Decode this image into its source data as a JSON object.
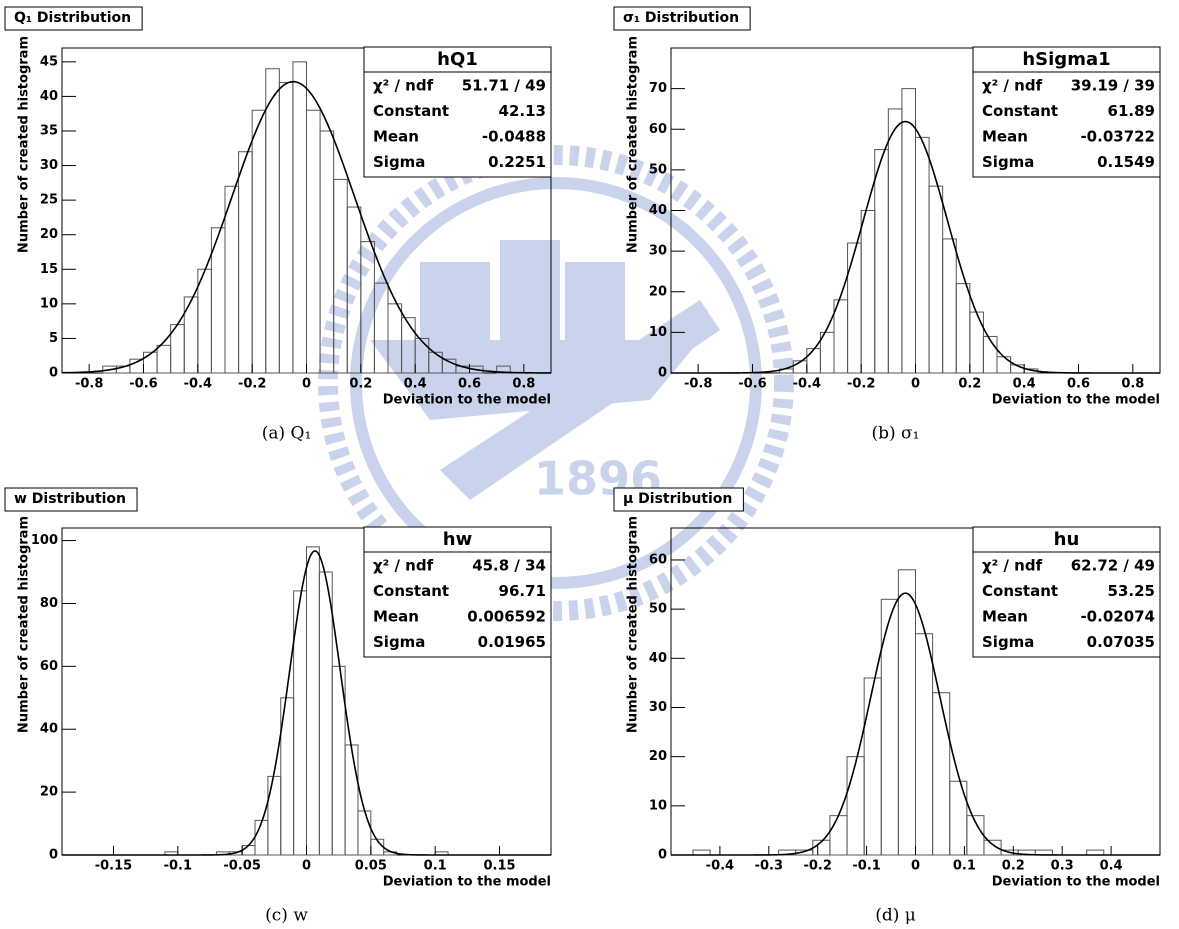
{
  "watermark": "1896",
  "chart_data": [
    {
      "type": "histogram",
      "title": "Q₁ Distribution",
      "caption": "(a) Q₁",
      "xlabel": "Deviation to the model",
      "ylabel": "Number of created histogram",
      "bins": [
        -0.9,
        -0.85,
        -0.8,
        -0.75,
        -0.7,
        -0.65,
        -0.6,
        -0.55,
        -0.5,
        -0.45,
        -0.4,
        -0.35,
        -0.3,
        -0.25,
        -0.2,
        -0.15,
        -0.1,
        -0.05,
        0,
        0.05,
        0.1,
        0.15,
        0.2,
        0.25,
        0.3,
        0.35,
        0.4,
        0.45,
        0.5,
        0.55,
        0.6,
        0.65,
        0.7,
        0.75,
        0.8,
        0.85,
        0.9
      ],
      "values": [
        0,
        0,
        0,
        1,
        1,
        2,
        3,
        4,
        7,
        11,
        15,
        21,
        27,
        32,
        38,
        44,
        42,
        45,
        38,
        35,
        28,
        24,
        19,
        13,
        10,
        8,
        5,
        3,
        2,
        1,
        1,
        0,
        1,
        0,
        0,
        0
      ],
      "color": "#555555",
      "fit_color": "#000000",
      "xlim": [
        -0.9,
        0.9
      ],
      "ylim": [
        0,
        47
      ],
      "xticks": [
        -0.8,
        -0.6,
        -0.4,
        -0.2,
        0,
        0.2,
        0.4,
        0.6,
        0.8
      ],
      "yticks": [
        0,
        5,
        10,
        15,
        20,
        25,
        30,
        35,
        40,
        45
      ],
      "stats": {
        "name": "hQ1",
        "rows": [
          {
            "label": "χ² / ndf",
            "value": "51.71 / 49"
          },
          {
            "label": "Constant",
            "value": 42.13
          },
          {
            "label": "Mean",
            "value": -0.0488
          },
          {
            "label": "Sigma",
            "value": 0.2251
          }
        ]
      }
    },
    {
      "type": "histogram",
      "title": "σ₁ Distribution",
      "caption": "(b) σ₁",
      "xlabel": "Deviation to the model",
      "ylabel": "Number of created histogram",
      "bins": [
        -0.9,
        -0.85,
        -0.8,
        -0.75,
        -0.7,
        -0.65,
        -0.6,
        -0.55,
        -0.5,
        -0.45,
        -0.4,
        -0.35,
        -0.3,
        -0.25,
        -0.2,
        -0.15,
        -0.1,
        -0.05,
        0,
        0.05,
        0.1,
        0.15,
        0.2,
        0.25,
        0.3,
        0.35,
        0.4,
        0.45,
        0.5,
        0.55,
        0.6,
        0.65,
        0.7,
        0.75,
        0.8,
        0.85,
        0.9
      ],
      "values": [
        0,
        0,
        0,
        0,
        0,
        0,
        0,
        0,
        1,
        3,
        6,
        10,
        18,
        32,
        40,
        55,
        65,
        70,
        58,
        46,
        33,
        22,
        15,
        9,
        4,
        2,
        1,
        0,
        0,
        0,
        0,
        0,
        0,
        0,
        0,
        0
      ],
      "color": "#555555",
      "fit_color": "#000000",
      "xlim": [
        -0.9,
        0.9
      ],
      "ylim": [
        0,
        80
      ],
      "xticks": [
        -0.8,
        -0.6,
        -0.4,
        -0.2,
        0,
        0.2,
        0.4,
        0.6,
        0.8
      ],
      "yticks": [
        0,
        10,
        20,
        30,
        40,
        50,
        60,
        70
      ],
      "stats": {
        "name": "hSigma1",
        "rows": [
          {
            "label": "χ² / ndf",
            "value": "39.19 / 39"
          },
          {
            "label": "Constant",
            "value": 61.89
          },
          {
            "label": "Mean",
            "value": -0.03722
          },
          {
            "label": "Sigma",
            "value": 0.1549
          }
        ]
      }
    },
    {
      "type": "histogram",
      "title": "w Distribution",
      "caption": "(c) w",
      "xlabel": "Deviation to the model",
      "ylabel": "Number of created histogram",
      "bins": [
        -0.19,
        -0.18,
        -0.17,
        -0.16,
        -0.15,
        -0.14,
        -0.13,
        -0.12,
        -0.11,
        -0.1,
        -0.09,
        -0.08,
        -0.07,
        -0.06,
        -0.05,
        -0.04,
        -0.03,
        -0.02,
        -0.01,
        0,
        0.01,
        0.02,
        0.03,
        0.04,
        0.05,
        0.06,
        0.07,
        0.08,
        0.09,
        0.1,
        0.11,
        0.12,
        0.13,
        0.14,
        0.15,
        0.16,
        0.17,
        0.18,
        0.19
      ],
      "values": [
        0,
        0,
        0,
        0,
        0,
        0,
        0,
        0,
        1,
        0,
        0,
        0,
        1,
        1,
        3,
        11,
        25,
        50,
        84,
        98,
        90,
        60,
        35,
        14,
        5,
        1,
        0,
        0,
        0,
        1,
        0,
        0,
        0,
        0,
        0,
        0,
        0,
        0
      ],
      "color": "#555555",
      "fit_color": "#000000",
      "xlim": [
        -0.19,
        0.19
      ],
      "ylim": [
        0,
        104
      ],
      "xticks": [
        -0.15,
        -0.1,
        -0.05,
        0,
        0.05,
        0.1,
        0.15
      ],
      "yticks": [
        0,
        20,
        40,
        60,
        80,
        100
      ],
      "stats": {
        "name": "hw",
        "rows": [
          {
            "label": "χ² / ndf",
            "value": "45.8 / 34"
          },
          {
            "label": "Constant",
            "value": 96.71
          },
          {
            "label": "Mean",
            "value": 0.006592
          },
          {
            "label": "Sigma",
            "value": 0.01965
          }
        ]
      }
    },
    {
      "type": "histogram",
      "title": "μ Distribution",
      "caption": "(d) μ",
      "xlabel": "Deviation to the model",
      "ylabel": "Number of created histogram",
      "bins": [
        -0.49,
        -0.455,
        -0.42,
        -0.385,
        -0.35,
        -0.315,
        -0.28,
        -0.245,
        -0.21,
        -0.175,
        -0.14,
        -0.105,
        -0.07,
        -0.035,
        0,
        0.035,
        0.07,
        0.105,
        0.14,
        0.175,
        0.21,
        0.245,
        0.28,
        0.315,
        0.35,
        0.385,
        0.42,
        0.455,
        0.49
      ],
      "values": [
        0,
        1,
        0,
        0,
        0,
        0,
        1,
        1,
        3,
        8,
        20,
        36,
        52,
        58,
        45,
        33,
        15,
        8,
        3,
        1,
        1,
        1,
        0,
        0,
        1,
        0,
        0,
        0
      ],
      "color": "#555555",
      "fit_color": "#000000",
      "xlim": [
        -0.5,
        0.5
      ],
      "ylim": [
        0,
        66.5
      ],
      "xticks": [
        -0.4,
        -0.3,
        -0.2,
        -0.1,
        0,
        0.1,
        0.2,
        0.3,
        0.4
      ],
      "yticks": [
        0,
        10,
        20,
        30,
        40,
        50,
        60
      ],
      "stats": {
        "name": "hu",
        "rows": [
          {
            "label": "χ² / ndf",
            "value": "62.72 / 49"
          },
          {
            "label": "Constant",
            "value": 53.25
          },
          {
            "label": "Mean",
            "value": -0.02074
          },
          {
            "label": "Sigma",
            "value": 0.07035
          }
        ]
      }
    }
  ]
}
